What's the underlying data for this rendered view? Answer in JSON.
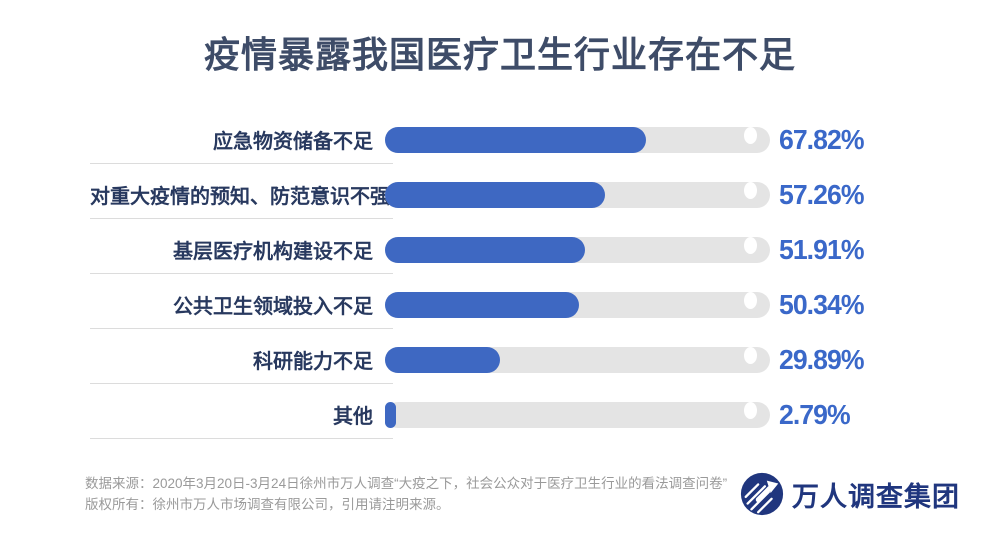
{
  "title": "疫情暴露我国医疗卫生行业存在不足",
  "chart_data": {
    "type": "bar",
    "orientation": "horizontal",
    "title": "疫情暴露我国医疗卫生行业存在不足",
    "categories": [
      "应急物资储备不足",
      "对重大疫情的预知、防范意识不强",
      "基层医疗机构建设不足",
      "公共卫生领域投入不足",
      "科研能力不足",
      "其他"
    ],
    "values": [
      67.82,
      57.26,
      51.91,
      50.34,
      29.89,
      2.79
    ],
    "value_labels": [
      "67.82%",
      "57.26%",
      "51.91%",
      "50.34%",
      "29.89%",
      "2.79%"
    ],
    "xlabel": "",
    "ylabel": "",
    "xlim": [
      0,
      100
    ],
    "grid": false,
    "legend": false
  },
  "footer": {
    "source": "数据来源：2020年3月20日-3月24日徐州市万人调查“大疫之下，社会公众对于医疗卫生行业的看法调查问卷”",
    "copyright": "版权所有：徐州市万人市场调查有限公司，引用请注明来源。"
  },
  "logo": {
    "text": "万人调查集团"
  },
  "colors": {
    "bar_fill": "#3E68C2",
    "bar_track": "#E4E4E4",
    "value_text": "#3A68C9",
    "label_text": "#28395F",
    "title_text": "#3E4C68",
    "footer_text": "#9A9A9A",
    "logo_navy": "#20367E"
  }
}
